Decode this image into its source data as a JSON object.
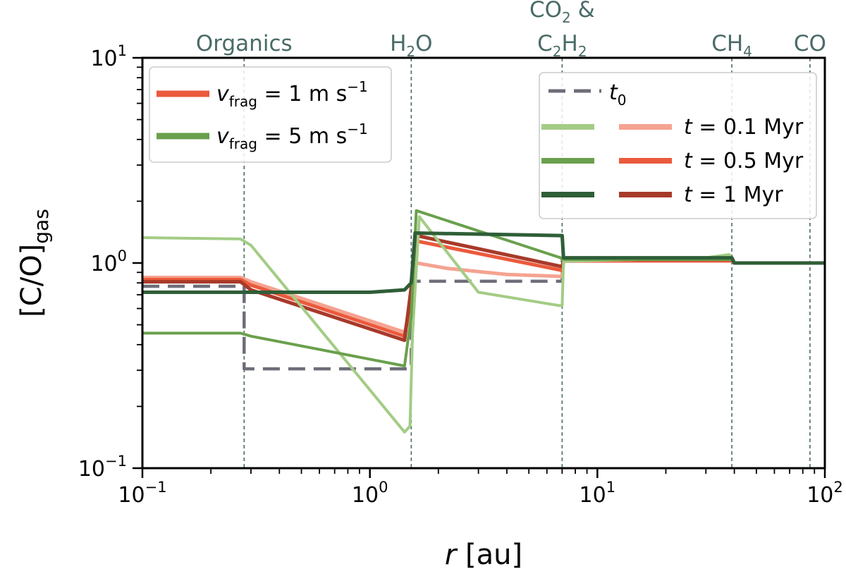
{
  "chart_data": {
    "type": "line",
    "xscale": "log",
    "yscale": "log",
    "xlim": [
      0.1,
      100
    ],
    "ylim": [
      0.1,
      10
    ],
    "xlabel_var": "r",
    "xlabel_unit": "[au]",
    "ylabel": "[C/O]",
    "ylabel_sub": "gas",
    "x_ticks": [
      {
        "value": 0.1,
        "base": "10",
        "exp": "−1"
      },
      {
        "value": 1,
        "base": "10",
        "exp": "0"
      },
      {
        "value": 10,
        "base": "10",
        "exp": "1"
      },
      {
        "value": 100,
        "base": "10",
        "exp": "2"
      }
    ],
    "y_ticks": [
      {
        "value": 0.1,
        "base": "10",
        "exp": "−1"
      },
      {
        "value": 1,
        "base": "10",
        "exp": "0"
      },
      {
        "value": 10,
        "base": "10",
        "exp": "1"
      }
    ],
    "snowlines": [
      {
        "x": 0.28,
        "lines": [
          [
            {
              "t": "Organics"
            }
          ]
        ]
      },
      {
        "x": 1.52,
        "lines": [
          [
            {
              "t": "H"
            },
            {
              "t": "2",
              "sub": true
            },
            {
              "t": "O"
            }
          ]
        ]
      },
      {
        "x": 7.0,
        "lines": [
          [
            {
              "t": "CO"
            },
            {
              "t": "2",
              "sub": true
            },
            {
              "t": " &"
            }
          ],
          [
            {
              "t": "C"
            },
            {
              "t": "2",
              "sub": true
            },
            {
              "t": "H"
            },
            {
              "t": "2",
              "sub": true
            }
          ]
        ]
      },
      {
        "x": 39,
        "lines": [
          [
            {
              "t": "CH"
            },
            {
              "t": "4",
              "sub": true
            }
          ]
        ]
      },
      {
        "x": 86,
        "lines": [
          [
            {
              "t": "CO"
            }
          ]
        ]
      }
    ],
    "colors": {
      "grid_line": "#4a6b68",
      "t0": "#6e6e7a",
      "red_01": "#f4a390",
      "red_05": "#eb5a3c",
      "red_1": "#a83a2a",
      "green_01": "#a3cc85",
      "green_05": "#6aa04d",
      "green_1": "#2f5e38"
    },
    "series": [
      {
        "name": "t0",
        "color": "#6e6e7a",
        "width": 4.5,
        "dash": "24,12",
        "x": [
          0.1,
          0.28,
          0.28,
          1.52,
          1.52,
          7.0,
          7.0,
          39,
          39,
          100
        ],
        "y": [
          0.77,
          0.77,
          0.305,
          0.305,
          0.815,
          0.815,
          1.02,
          1.02,
          1.0,
          1.0
        ]
      },
      {
        "name": "vfrag=1, t=0.1 Myr",
        "color": "#f4a390",
        "width": 5,
        "x": [
          0.1,
          0.27,
          0.3,
          1.42,
          1.52,
          1.6,
          2.2,
          4.0,
          7.0,
          7.1,
          39,
          40,
          100
        ],
        "y": [
          0.85,
          0.85,
          0.81,
          0.46,
          0.58,
          1.0,
          0.94,
          0.88,
          0.86,
          1.02,
          1.02,
          1.0,
          1.0
        ]
      },
      {
        "name": "vfrag=1, t=0.5 Myr",
        "color": "#eb5a3c",
        "width": 5,
        "x": [
          0.1,
          0.27,
          0.3,
          1.42,
          1.52,
          1.6,
          7.0,
          7.1,
          39,
          40,
          100
        ],
        "y": [
          0.83,
          0.83,
          0.78,
          0.44,
          0.7,
          1.28,
          0.92,
          1.03,
          1.03,
          1.0,
          1.0
        ]
      },
      {
        "name": "vfrag=1, t=1 Myr",
        "color": "#a83a2a",
        "width": 5,
        "x": [
          0.1,
          0.27,
          0.3,
          1.42,
          1.52,
          1.6,
          7.0,
          7.1,
          39,
          40,
          100
        ],
        "y": [
          0.81,
          0.81,
          0.74,
          0.42,
          0.76,
          1.36,
          0.96,
          1.04,
          1.04,
          1.0,
          1.0
        ]
      },
      {
        "name": "vfrag=5, t=0.1 Myr",
        "color": "#a3cc85",
        "width": 4,
        "x": [
          0.1,
          0.27,
          0.3,
          1.42,
          1.5,
          1.54,
          1.65,
          3.0,
          6.8,
          7.0,
          7.1,
          30,
          38,
          40,
          100
        ],
        "y": [
          1.33,
          1.31,
          1.22,
          0.15,
          0.16,
          0.45,
          1.68,
          0.72,
          0.62,
          0.62,
          1.02,
          1.06,
          1.1,
          1.0,
          1.0
        ]
      },
      {
        "name": "vfrag=5, t=0.5 Myr",
        "color": "#6aa04d",
        "width": 4,
        "x": [
          0.1,
          0.27,
          0.3,
          1.42,
          1.52,
          1.6,
          6.9,
          7.0,
          7.1,
          39,
          40,
          100
        ],
        "y": [
          0.455,
          0.455,
          0.44,
          0.315,
          0.55,
          1.8,
          1.06,
          1.04,
          1.04,
          1.04,
          1.0,
          1.0
        ]
      },
      {
        "name": "vfrag=5, t=1 Myr",
        "color": "#2f5e38",
        "width": 5,
        "x": [
          0.1,
          0.27,
          0.3,
          1.0,
          1.42,
          1.52,
          1.58,
          6.9,
          7.0,
          7.1,
          39,
          40,
          100
        ],
        "y": [
          0.72,
          0.72,
          0.72,
          0.72,
          0.74,
          0.8,
          1.4,
          1.36,
          1.36,
          1.06,
          1.06,
          1.0,
          1.0
        ]
      }
    ],
    "legend_left": {
      "location": "upper-left",
      "entries": [
        {
          "color": "#eb5a3c",
          "var": "v",
          "sub": "frag",
          "eq": " = 1 m s",
          "sup": "−1"
        },
        {
          "color": "#6aa04d",
          "var": "v",
          "sub": "frag",
          "eq": " = 5 m s",
          "sup": "−1"
        }
      ]
    },
    "legend_right": {
      "location": "upper-right",
      "t0_entry": {
        "var": "t",
        "sub": "0"
      },
      "rows": [
        {
          "green": "#a3cc85",
          "red": "#f4a390",
          "var": "t",
          "eq": " = 0.1 Myr"
        },
        {
          "green": "#6aa04d",
          "red": "#eb5a3c",
          "var": "t",
          "eq": " = 0.5 Myr"
        },
        {
          "green": "#2f5e38",
          "red": "#a83a2a",
          "var": "t",
          "eq": " = 1 Myr"
        }
      ]
    }
  }
}
